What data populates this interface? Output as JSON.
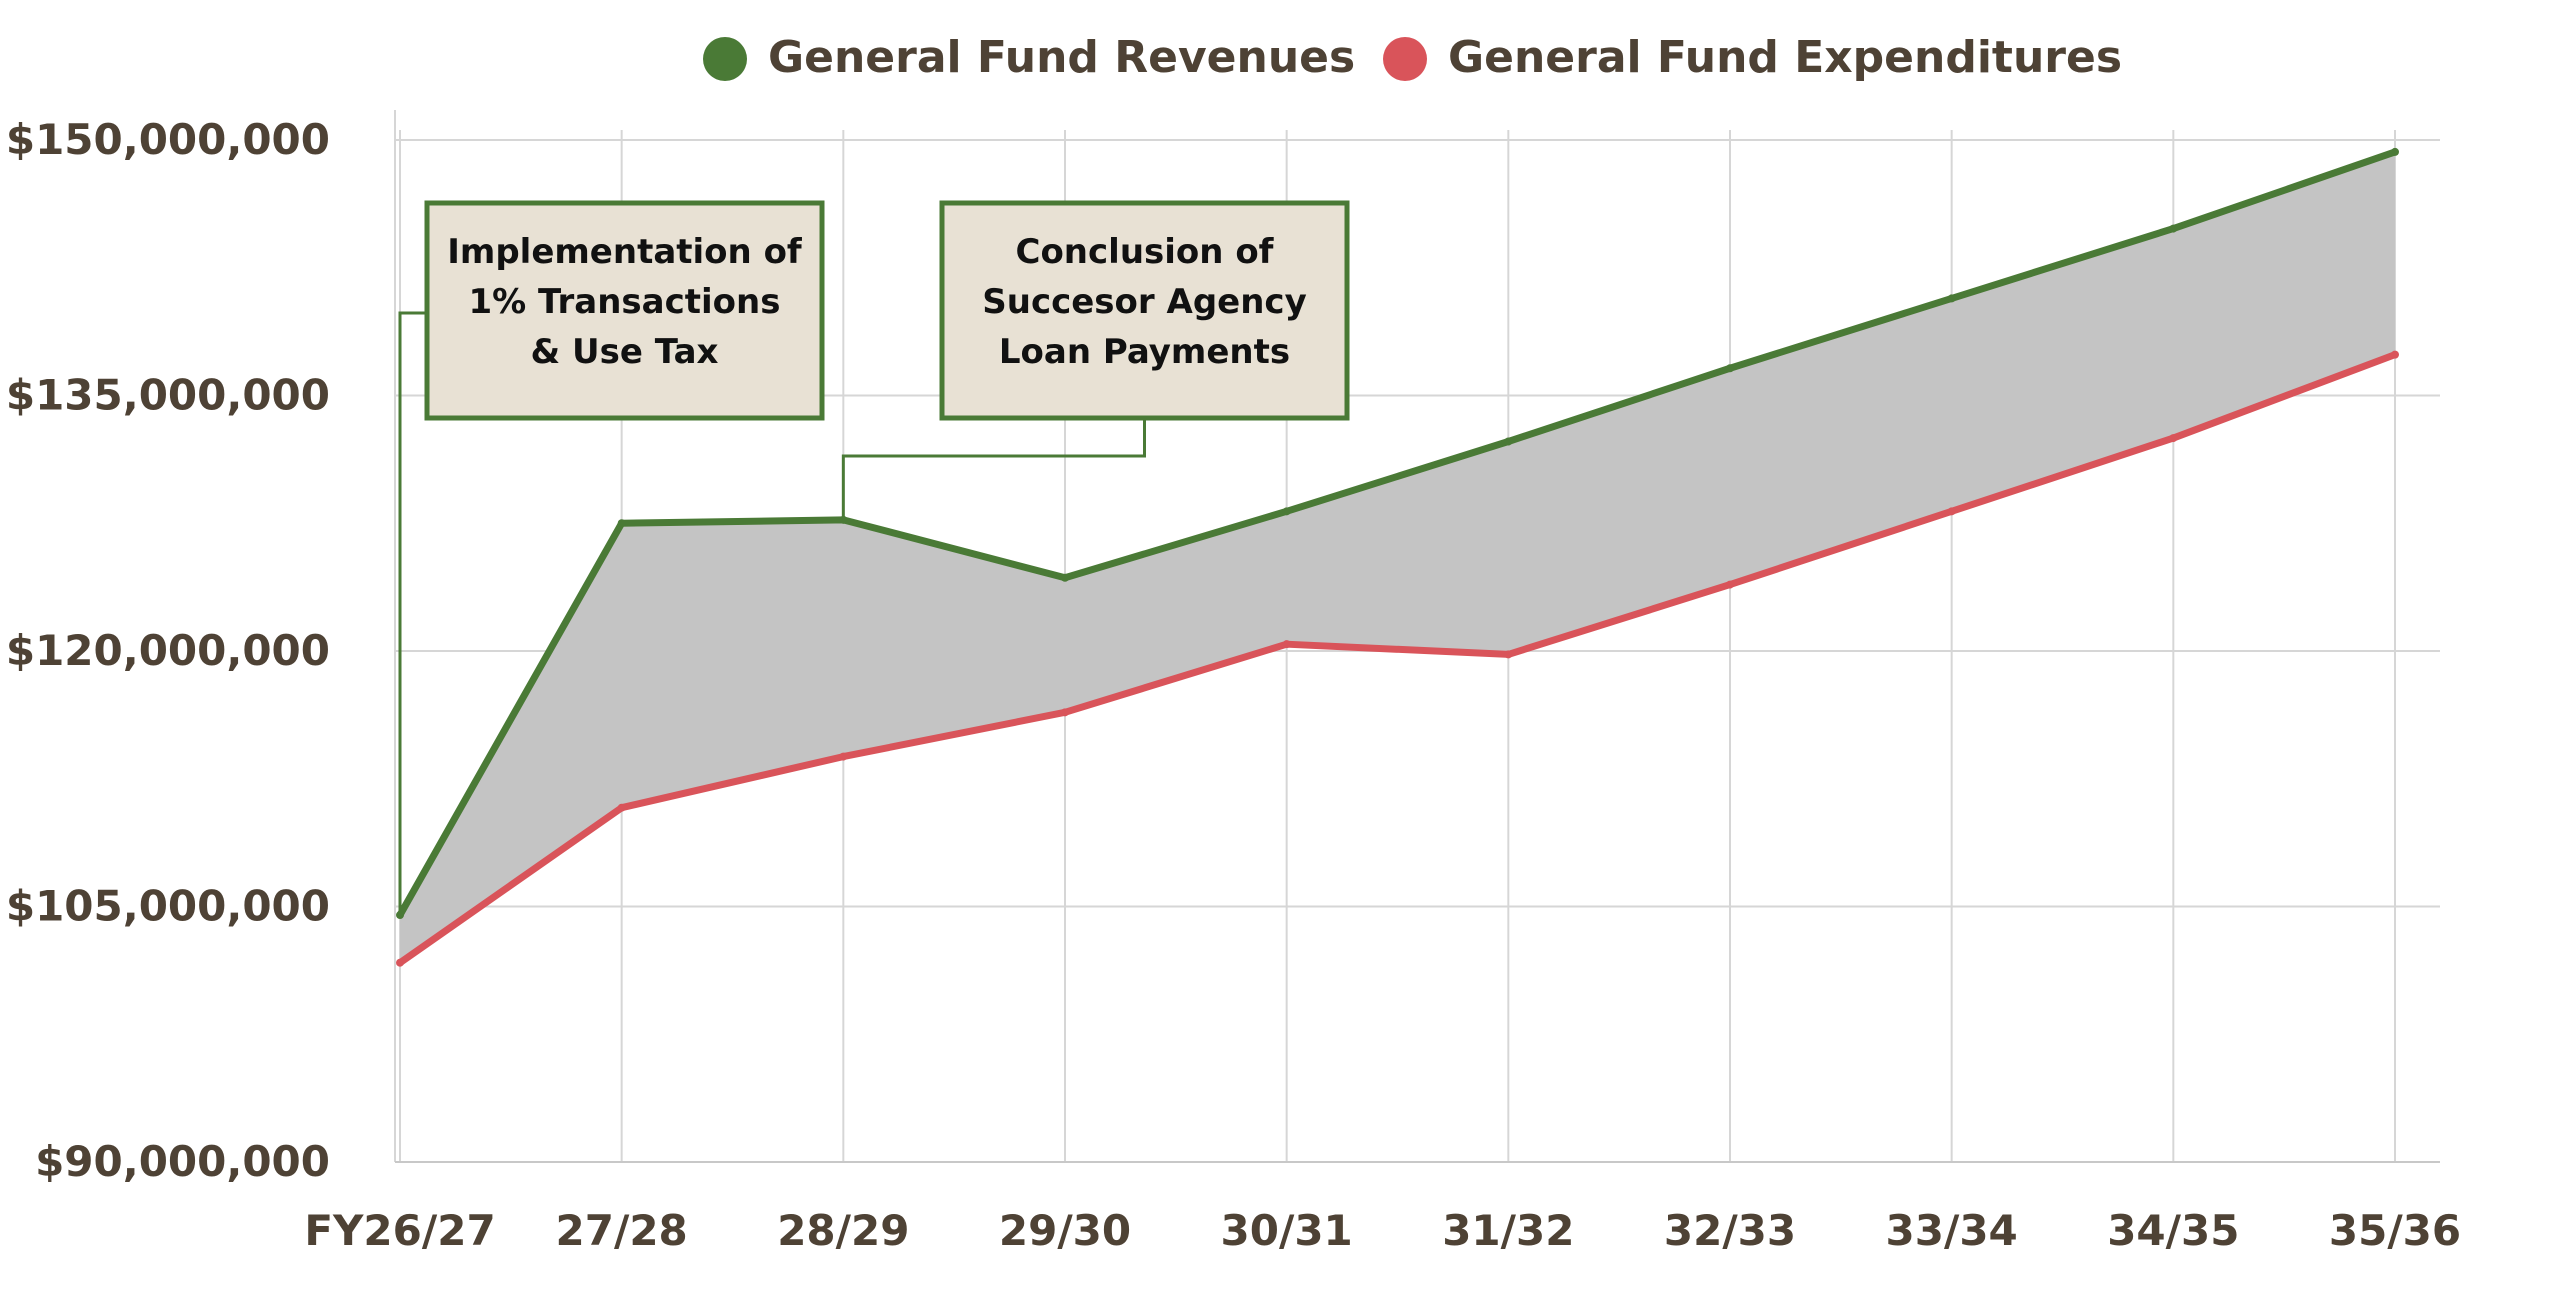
{
  "chart_data": {
    "type": "line",
    "title": "",
    "xlabel": "",
    "ylabel": "",
    "categories": [
      "FY26/27",
      "27/28",
      "28/29",
      "29/30",
      "30/31",
      "31/32",
      "32/33",
      "33/34",
      "34/35",
      "35/36"
    ],
    "series": [
      {
        "name": "General Fund Revenues",
        "color": "#4a7a36",
        "values": [
          104500000,
          127500000,
          127700000,
          124300000,
          128200000,
          132300000,
          136600000,
          140700000,
          144800000,
          149300000
        ]
      },
      {
        "name": "General Fund Expenditures",
        "color": "#d9545a",
        "values": [
          101700000,
          110800000,
          113800000,
          116400000,
          120400000,
          119800000,
          123900000,
          128200000,
          132500000,
          137400000
        ]
      }
    ],
    "ylim": [
      90000000,
      150000000
    ],
    "yticks": [
      "$150,000,000",
      "$135,000,000",
      "$120,000,000",
      "$105,000,000",
      "$90,000,000"
    ],
    "ytick_values": [
      150000000,
      135000000,
      120000000,
      105000000,
      90000000
    ],
    "grid": true,
    "fill_between": {
      "color": "#c4c4c4"
    },
    "legend_position": "top",
    "annotations": [
      {
        "lines": [
          "Implementation of",
          "1% Transactions",
          "& Use Tax"
        ],
        "category_index": 0,
        "series_index": 0
      },
      {
        "lines": [
          "Conclusion of",
          "Succesor Agency",
          "Loan Payments"
        ],
        "category_index": 2,
        "series_index": 0
      }
    ]
  }
}
